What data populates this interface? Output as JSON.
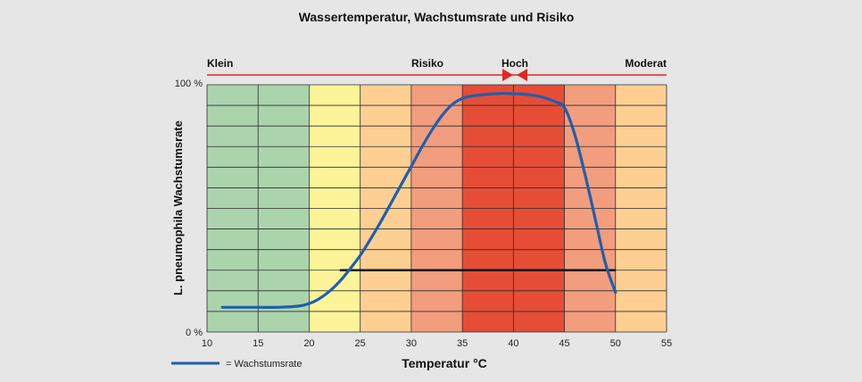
{
  "chart_data": {
    "type": "line",
    "title": "Wassertemperatur, Wachstumsrate und Risiko",
    "xlabel": "Temperatur °C",
    "ylabel": "L. pneumophila Wachstumsrate",
    "xlim": [
      10,
      55
    ],
    "ylim": [
      0,
      100
    ],
    "x_ticks": [
      "10",
      "15",
      "20",
      "25",
      "30",
      "35",
      "40",
      "45",
      "50",
      "55"
    ],
    "y_ticks": [
      "0 %",
      "100 %"
    ],
    "grid": true,
    "risk_labels": {
      "left": "Klein",
      "middle": "Risiko",
      "peak": "Hoch",
      "right": "Moderat"
    },
    "bands": [
      {
        "from": 10,
        "to": 20,
        "color": "#abd4ad"
      },
      {
        "from": 20,
        "to": 25,
        "color": "#fdf49a"
      },
      {
        "from": 25,
        "to": 30,
        "color": "#fdcf92"
      },
      {
        "from": 30,
        "to": 35,
        "color": "#f29d7e"
      },
      {
        "from": 35,
        "to": 45,
        "color": "#e64d36"
      },
      {
        "from": 45,
        "to": 50,
        "color": "#f29d7e"
      },
      {
        "from": 50,
        "to": 55,
        "color": "#fdcf92"
      }
    ],
    "series": [
      {
        "name": "Wachstumsrate",
        "color": "#1f5fae",
        "x": [
          11.5,
          15,
          17,
          19,
          20,
          21,
          22,
          23,
          24,
          25,
          26,
          27,
          28,
          29,
          30,
          31,
          32,
          33,
          34,
          35,
          36,
          37,
          38,
          39,
          40,
          41,
          42,
          43,
          44,
          45,
          46,
          47,
          48,
          49,
          50
        ],
        "y": [
          10,
          10,
          10,
          10.5,
          11.5,
          13.5,
          16.5,
          20.5,
          25.5,
          31,
          37.5,
          44.5,
          52,
          59.5,
          67,
          74.5,
          81.5,
          87.5,
          92,
          94.5,
          95.5,
          96,
          96.3,
          96.5,
          96.4,
          96.2,
          95.7,
          94.8,
          93.3,
          90.8,
          80,
          64,
          46,
          28,
          16
        ]
      }
    ],
    "threshold_line": {
      "x": [
        23,
        50
      ],
      "y": 25,
      "color": "#111111"
    },
    "legend_text": "= Wachstumsrate",
    "legend_position": "bottom-left"
  }
}
